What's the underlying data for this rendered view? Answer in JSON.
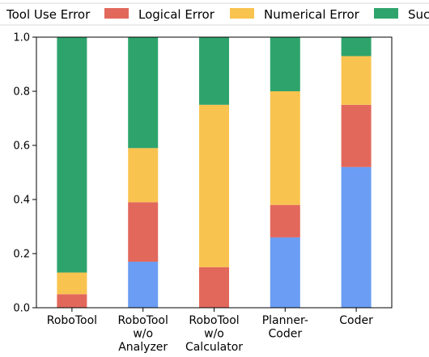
{
  "chart_data": {
    "type": "bar",
    "stacked": true,
    "categories": [
      "RoboTool",
      "RoboTool\nw/o\nAnalyzer",
      "RoboTool\nw/o\nCalculator",
      "Planner-\nCoder",
      "Coder"
    ],
    "series": [
      {
        "name": "Tool Use Error",
        "color": "#6a9df3",
        "values": [
          0.0,
          0.17,
          0.0,
          0.26,
          0.52
        ]
      },
      {
        "name": "Logical Error",
        "color": "#e2685c",
        "values": [
          0.05,
          0.22,
          0.15,
          0.12,
          0.23
        ]
      },
      {
        "name": "Numerical Error",
        "color": "#f9c34f",
        "values": [
          0.08,
          0.2,
          0.6,
          0.42,
          0.18
        ]
      },
      {
        "name": "Success",
        "color": "#2ea46c",
        "values": [
          0.87,
          0.41,
          0.25,
          0.2,
          0.07
        ]
      }
    ],
    "legend_labels": [
      "Tool Use Error",
      "Logical Error",
      "Numerical Error",
      "Suc"
    ],
    "ylim": [
      0,
      1.0
    ],
    "yticks": [
      "0.0",
      "0.2",
      "0.4",
      "0.6",
      "0.8",
      "1.0"
    ],
    "legend_position": "top",
    "grid": false
  }
}
